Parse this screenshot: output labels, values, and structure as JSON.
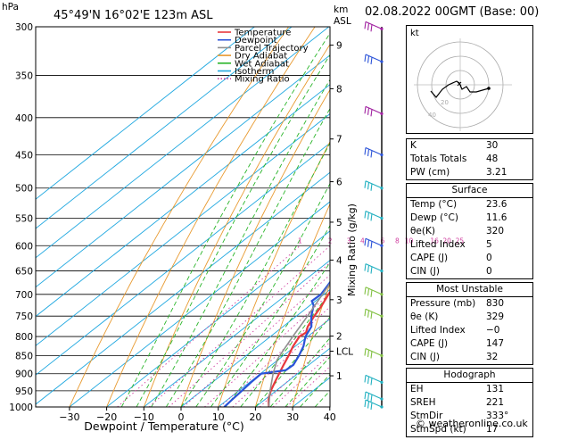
{
  "header": {
    "unit_hpa": "hPa",
    "location": "45°49'N  16°02'E  123m  ASL",
    "unit_km": "km",
    "unit_asl": "ASL",
    "datetime": "02.08.2022  00GMT  (Base: 00)"
  },
  "chart_data": {
    "type": "line",
    "xlabel": "Dewpoint / Temperature (°C)",
    "ylabel_right": "Mixing Ratio (g/kg)",
    "pressure_levels": [
      300,
      350,
      400,
      450,
      500,
      550,
      600,
      650,
      700,
      750,
      800,
      850,
      900,
      950,
      1000
    ],
    "pressure_labels": [
      "300",
      "350",
      "400",
      "450",
      "500",
      "550",
      "600",
      "650",
      "700",
      "750",
      "800",
      "850",
      "900",
      "950",
      "1000"
    ],
    "temp_ticks": [
      -30,
      -20,
      -10,
      0,
      10,
      20,
      30,
      40
    ],
    "temp_tick_labels": [
      "−30",
      "−20",
      "−10",
      "0",
      "10",
      "20",
      "30",
      "40"
    ],
    "plim": [
      300,
      1000
    ],
    "xlim": [
      -35,
      40
    ],
    "km_ticks": [
      {
        "label": "9",
        "p": 318
      },
      {
        "label": "8",
        "p": 365
      },
      {
        "label": "7",
        "p": 428
      },
      {
        "label": "6",
        "p": 490
      },
      {
        "label": "5",
        "p": 557
      },
      {
        "label": "4",
        "p": 628
      },
      {
        "label": "3",
        "p": 712
      },
      {
        "label": "2",
        "p": 799
      },
      {
        "label": "LCL",
        "p": 838
      },
      {
        "label": "1",
        "p": 906
      }
    ],
    "mixing_ratio_labels": [
      "1",
      "2",
      "3",
      "4",
      "6",
      "8",
      "10",
      "16",
      "20",
      "25"
    ],
    "mixing_ratio_values": [
      1,
      2,
      3,
      4,
      6,
      8,
      10,
      16,
      20,
      25
    ],
    "legend": [
      "Temperature",
      "Dewpoint",
      "Parcel Trajectory",
      "Dry Adiabat",
      "Wet Adiabat",
      "Isotherm",
      "Mixing Ratio"
    ],
    "series": [
      {
        "name": "Temperature",
        "color": "#e8383d",
        "points": [
          [
            1000,
            23.6
          ],
          [
            975,
            20.8
          ],
          [
            950,
            18.6
          ],
          [
            925,
            16.8
          ],
          [
            900,
            15.0
          ],
          [
            875,
            13.2
          ],
          [
            850,
            11.4
          ],
          [
            825,
            9.4
          ],
          [
            800,
            7.8
          ],
          [
            790,
            8.2
          ],
          [
            775,
            6.6
          ],
          [
            750,
            4.8
          ],
          [
            725,
            3.2
          ],
          [
            700,
            1.2
          ],
          [
            675,
            -0.6
          ],
          [
            650,
            -2.8
          ],
          [
            625,
            -5.2
          ],
          [
            600,
            -7.6
          ],
          [
            575,
            -9.8
          ],
          [
            550,
            -12.4
          ],
          [
            525,
            -15.0
          ],
          [
            500,
            -17.4
          ],
          [
            475,
            -20.4
          ],
          [
            450,
            -23.2
          ],
          [
            425,
            -26.4
          ],
          [
            400,
            -29.8
          ],
          [
            375,
            -33.6
          ],
          [
            350,
            -37.8
          ],
          [
            325,
            -42.4
          ],
          [
            310,
            -45.6
          ],
          [
            300,
            -47.6
          ]
        ]
      },
      {
        "name": "Dewpoint",
        "color": "#2a52d8",
        "points": [
          [
            1000,
            11.6
          ],
          [
            975,
            11.2
          ],
          [
            950,
            10.8
          ],
          [
            925,
            10.4
          ],
          [
            900,
            10.2
          ],
          [
            890,
            15.6
          ],
          [
            875,
            15.8
          ],
          [
            850,
            14.2
          ],
          [
            825,
            12.2
          ],
          [
            800,
            9.4
          ],
          [
            775,
            7.6
          ],
          [
            750,
            4.0
          ],
          [
            725,
            1.0
          ],
          [
            715,
            -1.0
          ],
          [
            700,
            -0.8
          ],
          [
            675,
            -2.4
          ],
          [
            650,
            -4.2
          ],
          [
            625,
            -6.0
          ],
          [
            600,
            -8.2
          ],
          [
            575,
            -10.8
          ],
          [
            550,
            -13.8
          ],
          [
            525,
            -17.8
          ],
          [
            515,
            -20.6
          ],
          [
            500,
            -20.2
          ],
          [
            475,
            -22.2
          ],
          [
            450,
            -25.0
          ],
          [
            425,
            -28.4
          ],
          [
            400,
            -32.4
          ],
          [
            375,
            -36.4
          ],
          [
            350,
            -41.4
          ],
          [
            335,
            -46.6
          ],
          [
            320,
            -48.6
          ],
          [
            310,
            -52.2
          ],
          [
            300,
            -53.4
          ]
        ]
      },
      {
        "name": "Parcel Trajectory",
        "color": "#909090",
        "points": [
          [
            1000,
            23.6
          ],
          [
            950,
            18.4
          ],
          [
            900,
            13.4
          ],
          [
            862,
            9.8
          ],
          [
            850,
            9.0
          ],
          [
            800,
            6.0
          ],
          [
            750,
            3.0
          ],
          [
            700,
            -0.4
          ],
          [
            650,
            -4.0
          ],
          [
            600,
            -8.0
          ],
          [
            550,
            -12.6
          ],
          [
            500,
            -17.8
          ],
          [
            450,
            -23.8
          ],
          [
            400,
            -30.8
          ],
          [
            350,
            -39.0
          ],
          [
            300,
            -48.6
          ]
        ]
      }
    ],
    "wind_barbs": [
      {
        "p": 302,
        "color": "#a020a0"
      },
      {
        "p": 335,
        "color": "#2a52d8"
      },
      {
        "p": 395,
        "color": "#a020a0"
      },
      {
        "p": 450,
        "color": "#2a52d8"
      },
      {
        "p": 500,
        "color": "#20b0c0"
      },
      {
        "p": 550,
        "color": "#20b0c0"
      },
      {
        "p": 600,
        "color": "#2a52d8"
      },
      {
        "p": 650,
        "color": "#20b0c0"
      },
      {
        "p": 700,
        "color": "#80c040"
      },
      {
        "p": 750,
        "color": "#80c040"
      },
      {
        "p": 850,
        "color": "#80c040"
      },
      {
        "p": 925,
        "color": "#20b0c0"
      },
      {
        "p": 975,
        "color": "#20b0c0"
      },
      {
        "p": 1000,
        "color": "#20b0c0"
      }
    ]
  },
  "hodograph": {
    "label": "kt",
    "ring_labels": [
      "20",
      "40"
    ]
  },
  "indices": {
    "top": [
      {
        "k": "K",
        "v": "30"
      },
      {
        "k": "Totals Totals",
        "v": "48"
      },
      {
        "k": "PW (cm)",
        "v": "3.21"
      }
    ],
    "surface_title": "Surface",
    "surface": [
      {
        "k": "Temp (°C)",
        "v": "23.6"
      },
      {
        "k": "Dewp (°C)",
        "v": "11.6"
      },
      {
        "k": "θe(K)",
        "v": "320"
      },
      {
        "k": "Lifted Index",
        "v": "5"
      },
      {
        "k": "CAPE (J)",
        "v": "0"
      },
      {
        "k": "CIN (J)",
        "v": "0"
      }
    ],
    "mu_title": "Most Unstable",
    "mu": [
      {
        "k": "Pressure (mb)",
        "v": "830"
      },
      {
        "k": "θe (K)",
        "v": "329"
      },
      {
        "k": "Lifted Index",
        "v": "−0"
      },
      {
        "k": "CAPE (J)",
        "v": "147"
      },
      {
        "k": "CIN (J)",
        "v": "32"
      }
    ],
    "hodo_title": "Hodograph",
    "hodo": [
      {
        "k": "EH",
        "v": "131"
      },
      {
        "k": "SREH",
        "v": "221"
      },
      {
        "k": "StmDir",
        "v": "333°"
      },
      {
        "k": "StmSpd (kt)",
        "v": "17"
      }
    ]
  },
  "footer": "© weatheronline.co.uk",
  "colors": {
    "temperature": "#e8383d",
    "dewpoint": "#2a52d8",
    "parcel": "#909090",
    "dry_adiabat": "#e89a30",
    "wet_adiabat": "#2ab52a",
    "isotherm": "#20a8e0",
    "mixing_ratio": "#d040a0"
  }
}
